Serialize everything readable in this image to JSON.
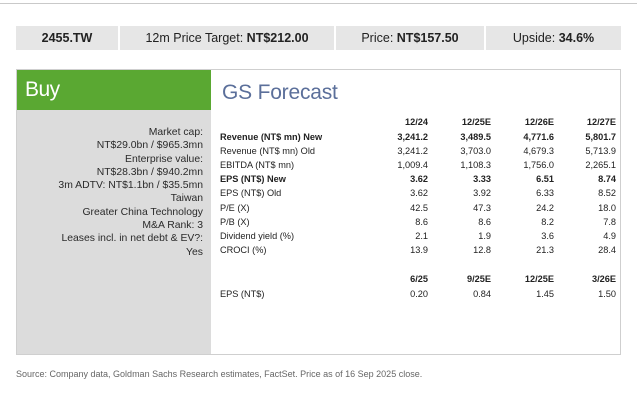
{
  "header": {
    "ticker": "2455.TW",
    "price_target_label": "12m Price Target: ",
    "price_target_value": "NT$212.00",
    "price_label": "Price: ",
    "price_value": "NT$157.50",
    "upside_label": "Upside: ",
    "upside_value": "34.6%"
  },
  "rating": "Buy",
  "left_info": [
    "Market cap:",
    "NT$29.0bn / $965.3mn",
    "Enterprise value:",
    "NT$28.3bn / $940.2mn",
    "3m ADTV: NT$1.1bn / $35.5mn",
    "Taiwan",
    "Greater China Technology",
    "M&A Rank: 3",
    "Leases incl. in net debt & EV?:",
    "Yes"
  ],
  "forecast": {
    "title": "GS Forecast",
    "columns": [
      "12/24",
      "12/25E",
      "12/26E",
      "12/27E"
    ],
    "rows": [
      {
        "label": "Revenue (NT$ mn) New",
        "values": [
          "3,241.2",
          "3,489.5",
          "4,771.6",
          "5,801.7"
        ],
        "bold": true
      },
      {
        "label": "Revenue (NT$ mn) Old",
        "values": [
          "3,241.2",
          "3,703.0",
          "4,679.3",
          "5,713.9"
        ],
        "bold": false
      },
      {
        "label": "EBITDA (NT$ mn)",
        "values": [
          "1,009.4",
          "1,108.3",
          "1,756.0",
          "2,265.1"
        ],
        "bold": false
      },
      {
        "label": "EPS (NT$) New",
        "values": [
          "3.62",
          "3.33",
          "6.51",
          "8.74"
        ],
        "bold": true
      },
      {
        "label": "EPS (NT$) Old",
        "values": [
          "3.62",
          "3.92",
          "6.33",
          "8.52"
        ],
        "bold": false
      },
      {
        "label": "P/E (X)",
        "values": [
          "42.5",
          "47.3",
          "24.2",
          "18.0"
        ],
        "bold": false
      },
      {
        "label": "P/B (X)",
        "values": [
          "8.6",
          "8.6",
          "8.2",
          "7.8"
        ],
        "bold": false
      },
      {
        "label": "Dividend yield (%)",
        "values": [
          "2.1",
          "1.9",
          "3.6",
          "4.9"
        ],
        "bold": false
      },
      {
        "label": "CROCI (%)",
        "values": [
          "13.9",
          "12.8",
          "21.3",
          "28.4"
        ],
        "bold": false
      }
    ],
    "quarterly_columns": [
      "6/25",
      "9/25E",
      "12/25E",
      "3/26E"
    ],
    "quarterly_rows": [
      {
        "label": "EPS (NT$)",
        "values": [
          "0.20",
          "0.84",
          "1.45",
          "1.50"
        ]
      }
    ]
  },
  "footnote": "Source: Company data, Goldman Sachs Research estimates, FactSet. Price as of 16 Sep 2025 close."
}
